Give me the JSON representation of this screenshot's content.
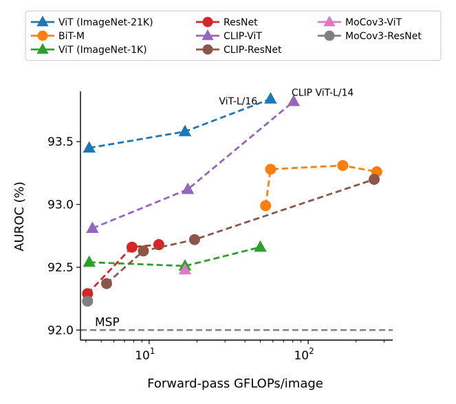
{
  "chart_data": {
    "type": "line",
    "title": "",
    "xlabel": "Forward-pass GFLOPs/image",
    "ylabel": "AUROC (%)",
    "xscale": "log",
    "xlim": [
      3.7,
      340
    ],
    "ylim": [
      91.92,
      93.9
    ],
    "grid": false,
    "legend_position": "top",
    "x_ticks": [
      {
        "value": 10,
        "base": "10",
        "exp": "1"
      },
      {
        "value": 100,
        "base": "10",
        "exp": "2"
      }
    ],
    "y_ticks": [
      {
        "value": 92.0,
        "label": "92.0"
      },
      {
        "value": 92.5,
        "label": "92.5"
      },
      {
        "value": 93.0,
        "label": "93.0"
      },
      {
        "value": 93.5,
        "label": "93.5"
      }
    ],
    "baseline": {
      "label": "MSP",
      "value": 92.0,
      "color": "#808080"
    },
    "annotations": [
      {
        "text": "ViT-L/16",
        "x": 58.0,
        "y": 93.84
      },
      {
        "text": "CLIP ViT-L/14",
        "x": 81.0,
        "y": 93.82
      }
    ],
    "series": [
      {
        "name": "ViT (ImageNet-21K)",
        "color": "#1f77b4",
        "marker": "triangle",
        "x": [
          4.2,
          16.8,
          58.0
        ],
        "y": [
          93.45,
          93.58,
          93.84
        ]
      },
      {
        "name": "BiT-M",
        "color": "#ff7f0e",
        "marker": "circle",
        "x": [
          54.0,
          58.0,
          165.0,
          270.0
        ],
        "y": [
          92.99,
          93.28,
          93.31,
          93.26
        ]
      },
      {
        "name": "ViT (ImageNet-1K)",
        "color": "#2ca02c",
        "marker": "triangle",
        "x": [
          4.2,
          16.8,
          50.0
        ],
        "y": [
          92.54,
          92.51,
          92.66
        ]
      },
      {
        "name": "ResNet",
        "color": "#d62728",
        "marker": "circle",
        "x": [
          4.1,
          7.8,
          11.5
        ],
        "y": [
          92.29,
          92.66,
          92.68
        ]
      },
      {
        "name": "CLIP-ViT",
        "color": "#9467bd",
        "marker": "triangle",
        "x": [
          4.4,
          17.5,
          81.0
        ],
        "y": [
          92.81,
          93.12,
          93.82
        ]
      },
      {
        "name": "CLIP-ResNet",
        "color": "#8c564b",
        "marker": "circle",
        "x": [
          5.4,
          9.2,
          19.3,
          260.0
        ],
        "y": [
          92.37,
          92.63,
          92.72,
          93.2
        ]
      },
      {
        "name": "MoCov3-ViT",
        "color": "#e377c2",
        "marker": "triangle",
        "x": [
          16.8
        ],
        "y": [
          92.48
        ]
      },
      {
        "name": "MoCov3-ResNet",
        "color": "#7f7f7f",
        "marker": "circle",
        "x": [
          4.1
        ],
        "y": [
          92.23
        ]
      }
    ]
  }
}
